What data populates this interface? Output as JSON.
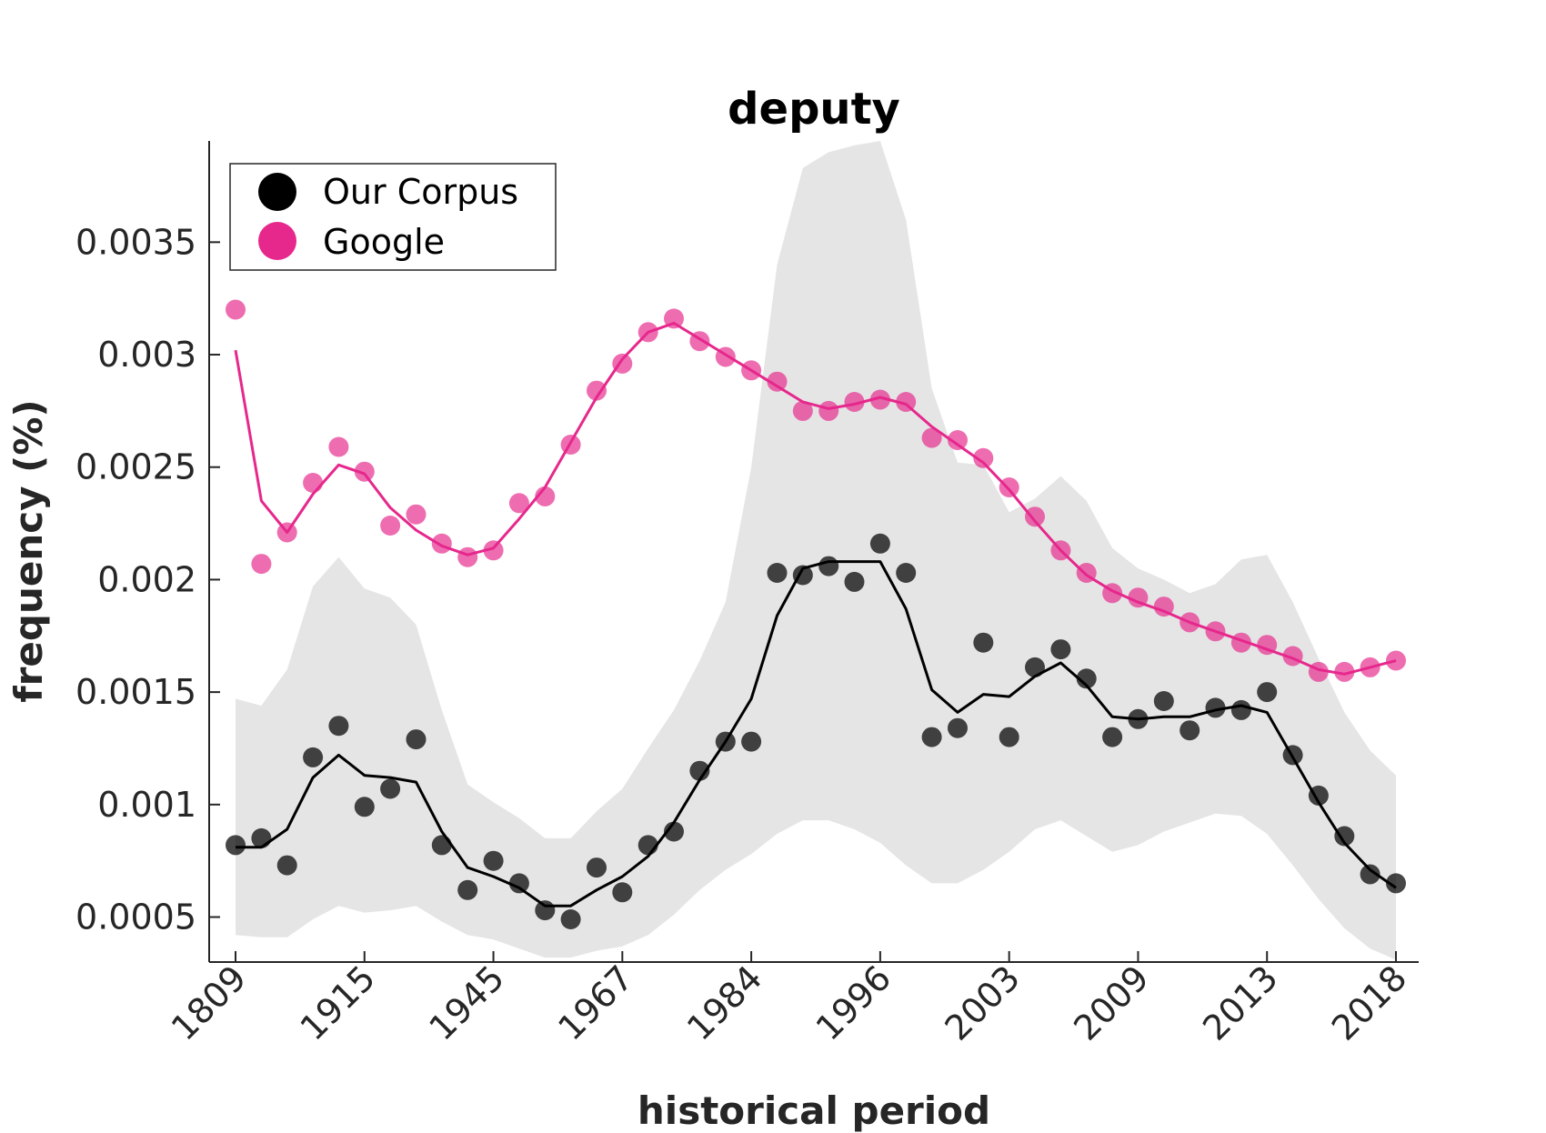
{
  "chart_data": {
    "type": "scatter",
    "title": "deputy",
    "xlabel": "historical period",
    "ylabel": "frequency (%)",
    "ylim": [
      0.0003,
      0.00395
    ],
    "yticks": [
      0.0005,
      0.001,
      0.0015,
      0.002,
      0.0025,
      0.003,
      0.0035
    ],
    "ytick_labels": [
      "0.0005",
      "0.001",
      "0.0015",
      "0.002",
      "0.0025",
      "0.003",
      "0.0035"
    ],
    "xticks": [
      {
        "index": 0,
        "label": "1809"
      },
      {
        "index": 5,
        "label": "1915"
      },
      {
        "index": 10,
        "label": "1945"
      },
      {
        "index": 15,
        "label": "1967"
      },
      {
        "index": 20,
        "label": "1984"
      },
      {
        "index": 25,
        "label": "1996"
      },
      {
        "index": 30,
        "label": "2003"
      },
      {
        "index": 35,
        "label": "2009"
      },
      {
        "index": 40,
        "label": "2013"
      },
      {
        "index": 45,
        "label": "2018"
      }
    ],
    "n_points": 46,
    "grid": false,
    "legend_position": "top-left",
    "series": [
      {
        "name": "Our Corpus",
        "color": "#000000",
        "points": [
          0.00082,
          0.00085,
          0.00073,
          0.00121,
          0.00135,
          0.00099,
          0.00107,
          0.00129,
          0.00082,
          0.00062,
          0.00075,
          0.00065,
          0.00053,
          0.00049,
          0.00072,
          0.00061,
          0.00082,
          0.00088,
          0.00115,
          0.00128,
          0.00128,
          0.00203,
          0.00202,
          0.00206,
          0.00199,
          0.00216,
          0.00203,
          0.0013,
          0.00134,
          0.00172,
          0.0013,
          0.00161,
          0.00169,
          0.00156,
          0.0013,
          0.00138,
          0.00146,
          0.00133,
          0.00143,
          0.00142,
          0.0015,
          0.00122,
          0.00104,
          0.00086,
          0.00069,
          0.00065
        ],
        "smooth": [
          0.00081,
          0.00081,
          0.00089,
          0.00112,
          0.00122,
          0.00113,
          0.00112,
          0.0011,
          0.00088,
          0.00072,
          0.00068,
          0.00063,
          0.00055,
          0.00055,
          0.00062,
          0.00068,
          0.00077,
          0.00092,
          0.00111,
          0.00128,
          0.00147,
          0.00184,
          0.00205,
          0.00208,
          0.00208,
          0.00208,
          0.00187,
          0.00151,
          0.00141,
          0.00149,
          0.00148,
          0.00157,
          0.00163,
          0.00153,
          0.00139,
          0.00138,
          0.00139,
          0.00139,
          0.00142,
          0.00144,
          0.00141,
          0.00121,
          0.00101,
          0.00083,
          0.00071,
          0.00063
        ],
        "band_upper": [
          0.00147,
          0.00144,
          0.0016,
          0.00197,
          0.0021,
          0.00196,
          0.00192,
          0.0018,
          0.00142,
          0.00109,
          0.00101,
          0.00094,
          0.00085,
          0.00085,
          0.00097,
          0.00107,
          0.00125,
          0.00142,
          0.00164,
          0.0019,
          0.0025,
          0.0034,
          0.00383,
          0.0039,
          0.00393,
          0.00395,
          0.0036,
          0.00285,
          0.00252,
          0.00251,
          0.0023,
          0.00236,
          0.00246,
          0.00235,
          0.00214,
          0.00205,
          0.002,
          0.00194,
          0.00198,
          0.00209,
          0.00211,
          0.0019,
          0.00165,
          0.00141,
          0.00124,
          0.00113
        ],
        "band_lower": [
          0.00042,
          0.00041,
          0.00041,
          0.00049,
          0.00055,
          0.00052,
          0.00053,
          0.00055,
          0.00048,
          0.00042,
          0.0004,
          0.00036,
          0.00032,
          0.00032,
          0.00035,
          0.00037,
          0.00042,
          0.00051,
          0.00062,
          0.00071,
          0.00078,
          0.00087,
          0.00093,
          0.00093,
          0.00089,
          0.00083,
          0.00073,
          0.00065,
          0.00065,
          0.00071,
          0.00079,
          0.00089,
          0.00093,
          0.00086,
          0.00079,
          0.00082,
          0.00088,
          0.00092,
          0.00096,
          0.00095,
          0.00087,
          0.00073,
          0.00058,
          0.00045,
          0.00036,
          0.00031
        ]
      },
      {
        "name": "Google",
        "color": "#e6288c",
        "points": [
          0.0032,
          0.00207,
          0.00221,
          0.00243,
          0.00259,
          0.00248,
          0.00224,
          0.00229,
          0.00216,
          0.0021,
          0.00213,
          0.00234,
          0.00237,
          0.0026,
          0.00284,
          0.00296,
          0.0031,
          0.00316,
          0.00306,
          0.00299,
          0.00293,
          0.00288,
          0.00275,
          0.00275,
          0.00279,
          0.0028,
          0.00279,
          0.00263,
          0.00262,
          0.00254,
          0.00241,
          0.00228,
          0.00213,
          0.00203,
          0.00194,
          0.00192,
          0.00188,
          0.00181,
          0.00177,
          0.00172,
          0.00171,
          0.00166,
          0.00159,
          0.00159,
          0.00161,
          0.00164
        ],
        "smooth": [
          0.00302,
          0.00235,
          0.00221,
          0.00238,
          0.00251,
          0.00247,
          0.00232,
          0.00222,
          0.00215,
          0.00211,
          0.00214,
          0.00227,
          0.00241,
          0.00261,
          0.00281,
          0.00298,
          0.0031,
          0.00314,
          0.00307,
          0.003,
          0.00293,
          0.00286,
          0.00279,
          0.00276,
          0.00278,
          0.00281,
          0.00278,
          0.00268,
          0.0026,
          0.00252,
          0.0024,
          0.00226,
          0.00213,
          0.00202,
          0.00195,
          0.0019,
          0.00186,
          0.00181,
          0.00177,
          0.00173,
          0.00169,
          0.00165,
          0.0016,
          0.00158,
          0.00161,
          0.00164
        ]
      }
    ]
  }
}
